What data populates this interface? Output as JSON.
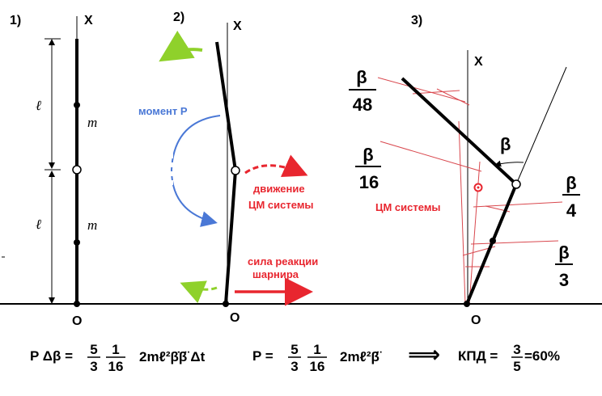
{
  "panels": [
    {
      "number": "1)",
      "axis": "X",
      "origin": "O",
      "length_label": "ℓ",
      "mass_label": "m"
    },
    {
      "number": "2)",
      "axis": "X",
      "origin": "O"
    },
    {
      "number": "3)",
      "axis": "X",
      "origin": "O"
    }
  ],
  "panel2": {
    "moment_label": "момент P",
    "motion_label_1": "движение",
    "motion_label_2": "ЦМ системы",
    "reaction_label_1": "сила реакции",
    "reaction_label_2": "шарнира"
  },
  "panel3": {
    "angle_label": "β",
    "cm_label": "ЦМ системы",
    "fractions": [
      {
        "num": "β",
        "den": "48"
      },
      {
        "num": "β",
        "den": "16"
      },
      {
        "num": "β",
        "den": "4"
      },
      {
        "num": "β",
        "den": "3"
      }
    ]
  },
  "formulas": {
    "f1_lhs": "P Δβ =",
    "f1_frac_a": {
      "num": "5",
      "den": "3"
    },
    "f1_frac_b": {
      "num": "1",
      "den": "16"
    },
    "f1_rhs": "2mℓ²β̇β̈ Δt",
    "f2_lhs": "P =",
    "f2_frac_a": {
      "num": "5",
      "den": "3"
    },
    "f2_frac_b": {
      "num": "1",
      "den": "16"
    },
    "f2_rhs": "2mℓ²β̈",
    "arrow": "⟹",
    "kpd_label": "КПД =",
    "kpd_frac": {
      "num": "3",
      "den": "5"
    },
    "kpd_result": "=60%"
  },
  "colors": {
    "blue": "#4a78d6",
    "red": "#e8262f",
    "green": "#8fd12b",
    "thin_red": "#d9484e"
  }
}
